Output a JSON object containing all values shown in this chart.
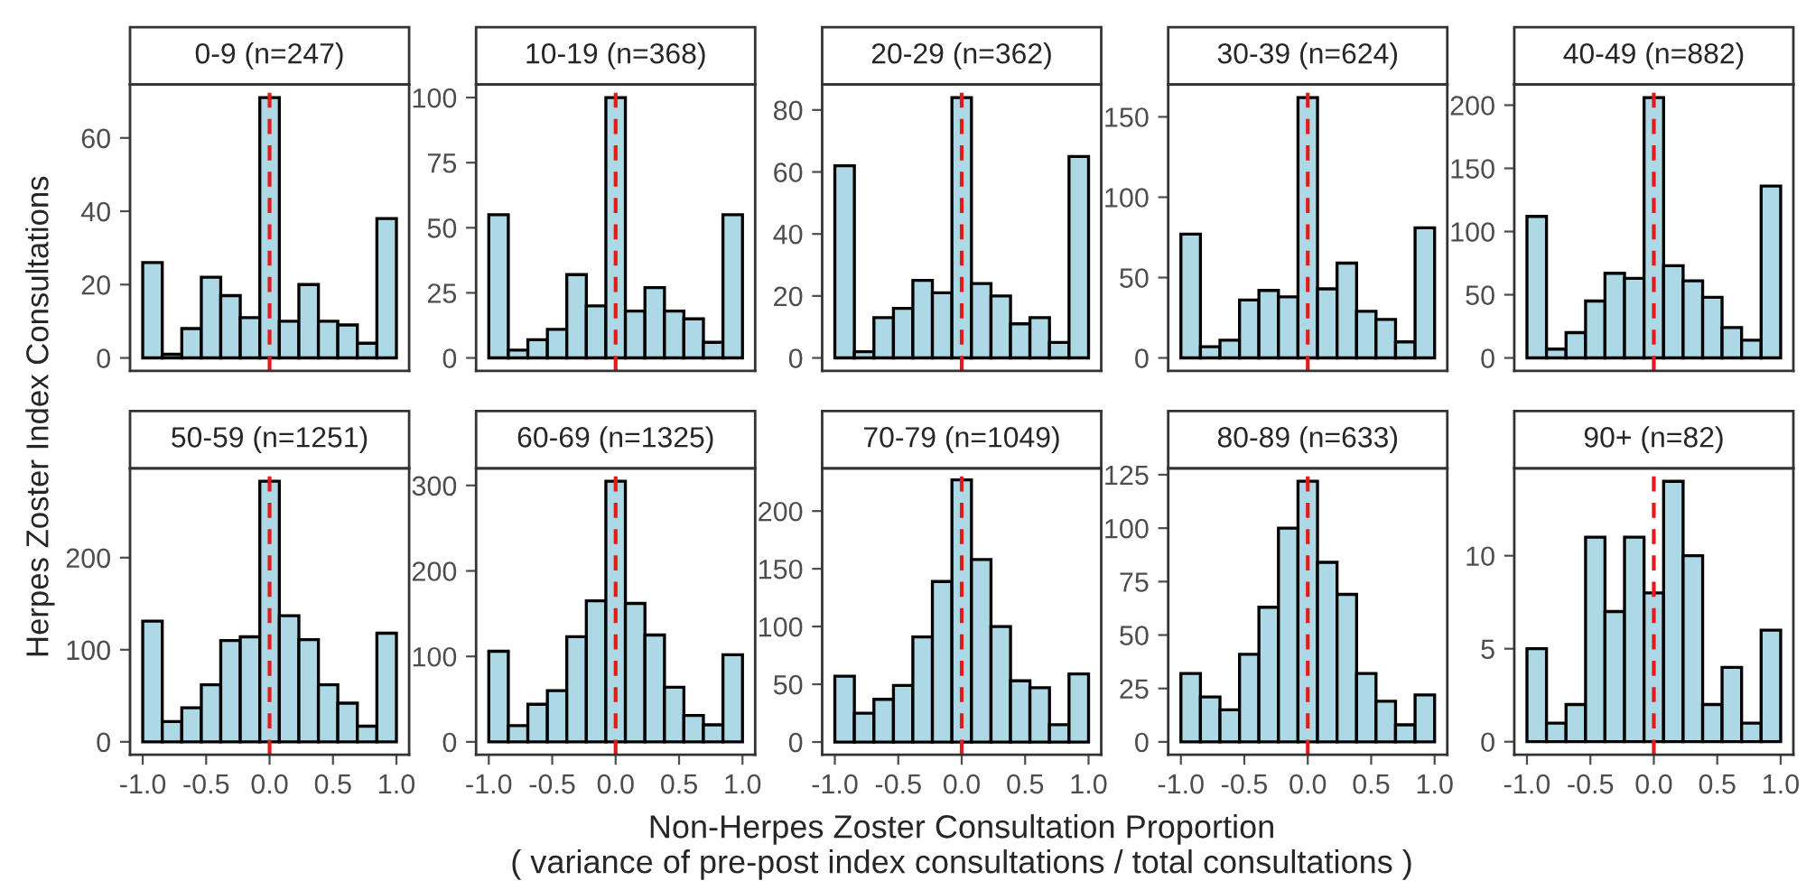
{
  "chart_data": [
    {
      "type": "histogram",
      "title": "0-9 (n=247)",
      "ylabel": "Herpes Zoster Index Consultations",
      "bins": [
        -1,
        -0.846,
        -0.692,
        -0.538,
        -0.385,
        -0.231,
        -0.077,
        0.077,
        0.231,
        0.385,
        0.538,
        0.692,
        0.846,
        1
      ],
      "values": [
        26,
        1,
        8,
        22,
        17,
        11,
        71,
        10,
        20,
        10,
        9,
        4,
        38
      ],
      "color": "#add8e6",
      "xlim": [
        -1.1,
        1.1
      ],
      "ylim": [
        -3.55,
        74.55
      ],
      "yticks": [
        0,
        20,
        40,
        60
      ],
      "tick_labels": "y",
      "ref_lines": [
        {
          "axis": "x",
          "value": 0,
          "color": "#e31a1c",
          "line_style": "dashed"
        }
      ],
      "grid": false
    },
    {
      "type": "histogram",
      "title": "10-19 (n=368)",
      "bins": [
        -1,
        -0.846,
        -0.692,
        -0.538,
        -0.385,
        -0.231,
        -0.077,
        0.077,
        0.231,
        0.385,
        0.538,
        0.692,
        0.846,
        1
      ],
      "values": [
        55,
        3,
        7,
        11,
        32,
        20,
        100,
        18,
        27,
        18,
        15,
        6,
        55
      ],
      "color": "#add8e6",
      "xlim": [
        -1.1,
        1.1
      ],
      "ylim": [
        -5,
        105
      ],
      "yticks": [
        0,
        25,
        50,
        75,
        100
      ],
      "tick_labels": "y",
      "ref_lines": [
        {
          "axis": "x",
          "value": 0,
          "color": "#e31a1c",
          "line_style": "dashed"
        }
      ],
      "grid": false
    },
    {
      "type": "histogram",
      "title": "20-29 (n=362)",
      "bins": [
        -1,
        -0.846,
        -0.692,
        -0.538,
        -0.385,
        -0.231,
        -0.077,
        0.077,
        0.231,
        0.385,
        0.538,
        0.692,
        0.846,
        1
      ],
      "values": [
        62,
        2,
        13,
        16,
        25,
        21,
        84,
        24,
        20,
        11,
        13,
        5,
        65
      ],
      "color": "#add8e6",
      "xlim": [
        -1.1,
        1.1
      ],
      "ylim": [
        -4.2,
        88.2
      ],
      "yticks": [
        0,
        20,
        40,
        60,
        80
      ],
      "tick_labels": "y",
      "ref_lines": [
        {
          "axis": "x",
          "value": 0,
          "color": "#e31a1c",
          "line_style": "dashed"
        }
      ],
      "grid": false
    },
    {
      "type": "histogram",
      "title": "30-39 (n=624)",
      "bins": [
        -1,
        -0.846,
        -0.692,
        -0.538,
        -0.385,
        -0.231,
        -0.077,
        0.077,
        0.231,
        0.385,
        0.538,
        0.692,
        0.846,
        1
      ],
      "values": [
        77,
        7,
        11,
        36,
        42,
        38,
        162,
        43,
        59,
        29,
        24,
        10,
        81
      ],
      "color": "#add8e6",
      "xlim": [
        -1.1,
        1.1
      ],
      "ylim": [
        -8.1,
        170.1
      ],
      "yticks": [
        0,
        50,
        100,
        150
      ],
      "tick_labels": "y",
      "ref_lines": [
        {
          "axis": "x",
          "value": 0,
          "color": "#e31a1c",
          "line_style": "dashed"
        }
      ],
      "grid": false
    },
    {
      "type": "histogram",
      "title": "40-49 (n=882)",
      "bins": [
        -1,
        -0.846,
        -0.692,
        -0.538,
        -0.385,
        -0.231,
        -0.077,
        0.077,
        0.231,
        0.385,
        0.538,
        0.692,
        0.846,
        1
      ],
      "values": [
        112,
        7,
        20,
        45,
        67,
        63,
        206,
        73,
        61,
        48,
        24,
        14,
        136
      ],
      "color": "#add8e6",
      "xlim": [
        -1.1,
        1.1
      ],
      "ylim": [
        -10.3,
        216.3
      ],
      "yticks": [
        0,
        50,
        100,
        150,
        200
      ],
      "tick_labels": "y",
      "ref_lines": [
        {
          "axis": "x",
          "value": 0,
          "color": "#e31a1c",
          "line_style": "dashed"
        }
      ],
      "grid": false
    },
    {
      "type": "histogram",
      "title": "50-59 (n=1251)",
      "bins": [
        -1,
        -0.846,
        -0.692,
        -0.538,
        -0.385,
        -0.231,
        -0.077,
        0.077,
        0.231,
        0.385,
        0.538,
        0.692,
        0.846,
        1
      ],
      "values": [
        131,
        22,
        37,
        62,
        110,
        114,
        283,
        137,
        111,
        62,
        42,
        17,
        118
      ],
      "color": "#add8e6",
      "xlim": [
        -1.1,
        1.1
      ],
      "ylim": [
        -14,
        297
      ],
      "xticks": [
        {
          "value": -1,
          "label": "-1.0"
        },
        {
          "value": -0.5,
          "label": "-0.5"
        },
        {
          "value": 0,
          "label": "0.0"
        },
        {
          "value": 0.5,
          "label": "0.5"
        },
        {
          "value": 1,
          "label": "1.0"
        }
      ],
      "yticks": [
        0,
        100,
        200
      ],
      "ref_lines": [
        {
          "axis": "x",
          "value": 0,
          "color": "#e31a1c",
          "line_style": "dashed"
        }
      ],
      "grid": false
    },
    {
      "type": "histogram",
      "title": "60-69 (n=1325)",
      "bins": [
        -1,
        -0.846,
        -0.692,
        -0.538,
        -0.385,
        -0.231,
        -0.077,
        0.077,
        0.231,
        0.385,
        0.538,
        0.692,
        0.846,
        1
      ],
      "values": [
        106,
        19,
        44,
        60,
        123,
        165,
        305,
        162,
        125,
        64,
        31,
        20,
        102
      ],
      "color": "#add8e6",
      "xlim": [
        -1.1,
        1.1
      ],
      "ylim": [
        -15,
        320
      ],
      "xticks": [
        {
          "value": -1,
          "label": "-1.0"
        },
        {
          "value": -0.5,
          "label": "-0.5"
        },
        {
          "value": 0,
          "label": "0.0"
        },
        {
          "value": 0.5,
          "label": "0.5"
        },
        {
          "value": 1,
          "label": "1.0"
        }
      ],
      "yticks": [
        0,
        100,
        200,
        300
      ],
      "ref_lines": [
        {
          "axis": "x",
          "value": 0,
          "color": "#e31a1c",
          "line_style": "dashed"
        }
      ],
      "grid": false
    },
    {
      "type": "histogram",
      "title": "70-79 (n=1049)",
      "xlabel": "Non-Herpes Zoster Consultation Proportion\n( variance of pre-post index consultations / total consultations )",
      "bins": [
        -1,
        -0.846,
        -0.692,
        -0.538,
        -0.385,
        -0.231,
        -0.077,
        0.077,
        0.231,
        0.385,
        0.538,
        0.692,
        0.846,
        1
      ],
      "values": [
        57,
        25,
        37,
        49,
        91,
        139,
        227,
        158,
        100,
        53,
        47,
        15,
        59
      ],
      "color": "#add8e6",
      "xlim": [
        -1.1,
        1.1
      ],
      "ylim": [
        -11,
        237
      ],
      "xticks": [
        {
          "value": -1,
          "label": "-1.0"
        },
        {
          "value": -0.5,
          "label": "-0.5"
        },
        {
          "value": 0,
          "label": "0.0"
        },
        {
          "value": 0.5,
          "label": "0.5"
        },
        {
          "value": 1,
          "label": "1.0"
        }
      ],
      "yticks": [
        0,
        50,
        100,
        150,
        200
      ],
      "ref_lines": [
        {
          "axis": "x",
          "value": 0,
          "color": "#e31a1c",
          "line_style": "dashed"
        }
      ],
      "grid": false
    },
    {
      "type": "histogram",
      "title": "80-89 (n=633)",
      "bins": [
        -1,
        -0.846,
        -0.692,
        -0.538,
        -0.385,
        -0.231,
        -0.077,
        0.077,
        0.231,
        0.385,
        0.538,
        0.692,
        0.846,
        1
      ],
      "values": [
        32,
        21,
        15,
        41,
        63,
        100,
        122,
        84,
        69,
        32,
        19,
        8,
        22
      ],
      "color": "#add8e6",
      "xlim": [
        -1.1,
        1.1
      ],
      "ylim": [
        -6,
        128
      ],
      "xticks": [
        {
          "value": -1,
          "label": "-1.0"
        },
        {
          "value": -0.5,
          "label": "-0.5"
        },
        {
          "value": 0,
          "label": "0.0"
        },
        {
          "value": 0.5,
          "label": "0.5"
        },
        {
          "value": 1,
          "label": "1.0"
        }
      ],
      "yticks": [
        0,
        25,
        50,
        75,
        100,
        125
      ],
      "ref_lines": [
        {
          "axis": "x",
          "value": 0,
          "color": "#e31a1c",
          "line_style": "dashed"
        }
      ],
      "grid": false
    },
    {
      "type": "histogram",
      "title": "90+ (n=82)",
      "bins": [
        -1,
        -0.846,
        -0.692,
        -0.538,
        -0.385,
        -0.231,
        -0.077,
        0.077,
        0.231,
        0.385,
        0.538,
        0.692,
        0.846,
        1
      ],
      "values": [
        5,
        1,
        2,
        11,
        7,
        11,
        8,
        14,
        10,
        2,
        4,
        1,
        6
      ],
      "color": "#add8e6",
      "xlim": [
        -1.1,
        1.1
      ],
      "ylim": [
        -0.7,
        14.7
      ],
      "xticks": [
        {
          "value": -1,
          "label": "-1.0"
        },
        {
          "value": -0.5,
          "label": "-0.5"
        },
        {
          "value": 0,
          "label": "0.0"
        },
        {
          "value": 0.5,
          "label": "0.5"
        },
        {
          "value": 1,
          "label": "1.0"
        }
      ],
      "yticks": [
        0,
        5,
        10
      ],
      "ref_lines": [
        {
          "axis": "x",
          "value": 0,
          "color": "#e31a1c",
          "line_style": "dashed"
        }
      ],
      "grid": false
    }
  ]
}
